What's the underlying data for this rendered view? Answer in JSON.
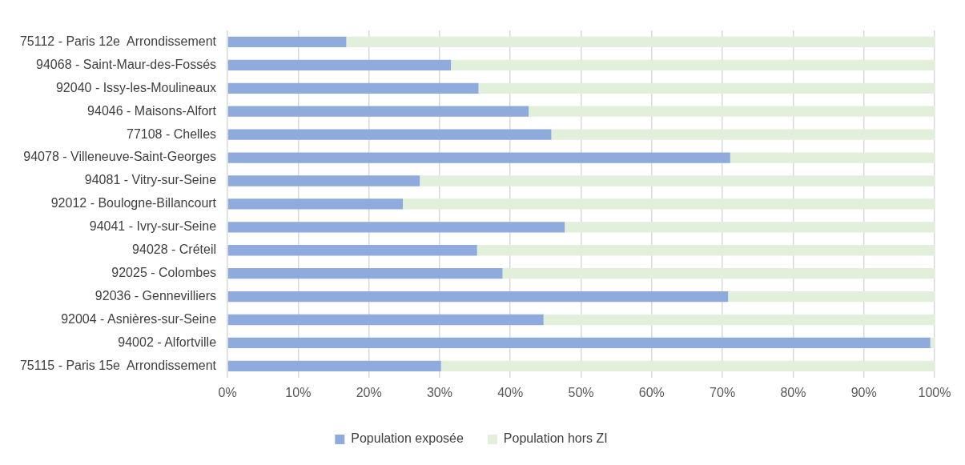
{
  "chart_data": {
    "type": "bar",
    "orientation": "horizontal",
    "stacked": true,
    "categories": [
      "75112 - Paris 12e  Arrondissement",
      "94068 - Saint-Maur-des-Fossés",
      "92040 - Issy-les-Moulineaux",
      "94046 - Maisons-Alfort",
      "77108 - Chelles",
      "94078 - Villeneuve-Saint-Georges",
      "94081 - Vitry-sur-Seine",
      "92012 - Boulogne-Billancourt",
      "94041 - Ivry-sur-Seine",
      "94028 - Créteil",
      "92025 - Colombes",
      "92036 - Gennevilliers",
      "92004 - Asnières-sur-Seine",
      "94002 - Alfortville",
      "75115 - Paris 15e  Arrondissement"
    ],
    "series": [
      {
        "name": "Population exposée",
        "color": "#8faadc",
        "values": [
          16.8,
          31.6,
          35.5,
          42.6,
          45.8,
          71.1,
          27.2,
          24.8,
          47.7,
          35.3,
          38.9,
          70.8,
          44.7,
          99.4,
          30.2
        ]
      },
      {
        "name": "Population hors ZI",
        "color": "#e2efda",
        "values": [
          83.2,
          68.4,
          64.5,
          57.4,
          54.2,
          28.9,
          72.8,
          75.2,
          52.3,
          64.7,
          61.1,
          29.2,
          55.3,
          0.6,
          69.8
        ]
      }
    ],
    "xlim": [
      0,
      100
    ],
    "xticks": [
      {
        "value": 0,
        "label": "0%"
      },
      {
        "value": 10,
        "label": "10%"
      },
      {
        "value": 20,
        "label": "20%"
      },
      {
        "value": 30,
        "label": "30%"
      },
      {
        "value": 40,
        "label": "40%"
      },
      {
        "value": 50,
        "label": "50%"
      },
      {
        "value": 60,
        "label": "60%"
      },
      {
        "value": 70,
        "label": "70%"
      },
      {
        "value": 80,
        "label": "80%"
      },
      {
        "value": 90,
        "label": "90%"
      },
      {
        "value": 100,
        "label": "100%"
      }
    ],
    "grid": "x",
    "legend": "bottom"
  }
}
